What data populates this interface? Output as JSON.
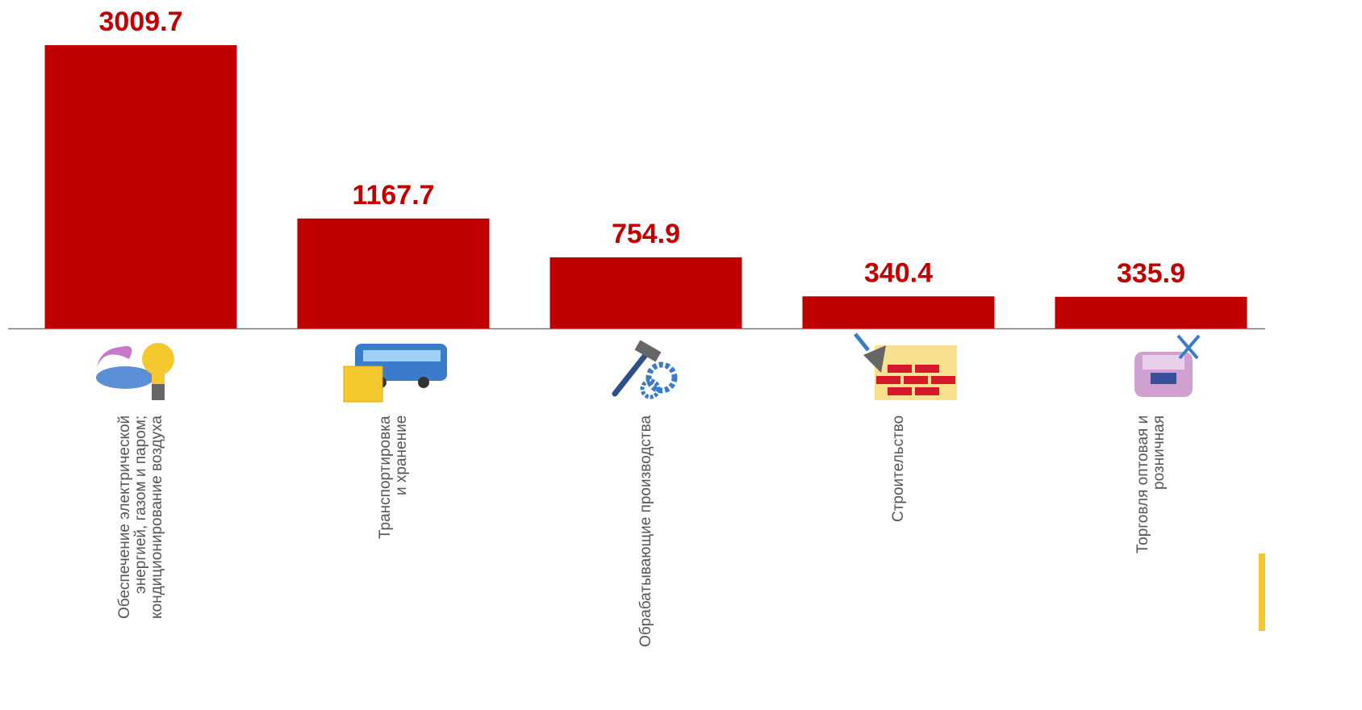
{
  "chart_data": {
    "type": "bar",
    "categories": [
      "Обеспечение электрической\nэнергией, газом и паром;\nкондиционирование воздуха",
      "Транспортировка\nи хранение",
      "Обрабатывающие производства",
      "Строительство",
      "Торговля оптовая и\nрозничная"
    ],
    "values": [
      3009.7,
      1167.7,
      754.9,
      340.4,
      335.9
    ],
    "color": "#c00000"
  }
}
